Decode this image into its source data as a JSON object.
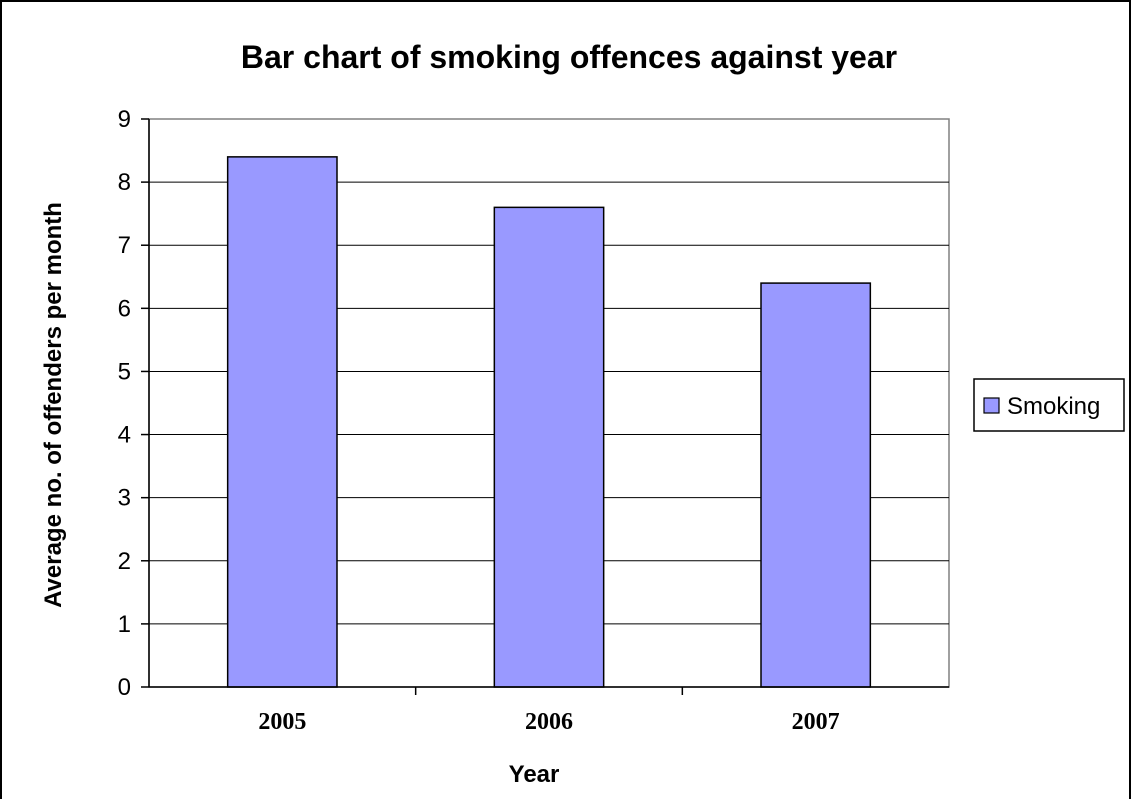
{
  "chart_data": {
    "type": "bar",
    "title": "Bar chart of smoking offences against year",
    "xlabel": "Year",
    "ylabel": "Average no. of offenders per month",
    "categories": [
      "2005",
      "2006",
      "2007"
    ],
    "series": [
      {
        "name": "Smoking",
        "values": [
          8.4,
          7.6,
          6.4
        ],
        "color": "#9999ff"
      }
    ],
    "ylim": [
      0,
      9
    ],
    "yticks": [
      "0",
      "1",
      "2",
      "3",
      "4",
      "5",
      "6",
      "7",
      "8",
      "9"
    ],
    "grid": true,
    "legend_position": "right"
  }
}
